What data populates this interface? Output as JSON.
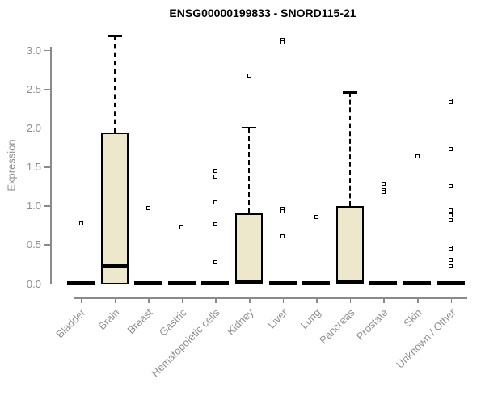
{
  "header": {
    "title": "ENSG00000199833 - SNORD115-21"
  },
  "chart_data": {
    "type": "box",
    "title": "ENSG00000199833 - SNORD115-21",
    "xlabel": "",
    "ylabel": "Expression",
    "ylim": [
      0,
      3.2
    ],
    "yticks": [
      0,
      0.5,
      1,
      1.5,
      2,
      2.5,
      3
    ],
    "grid": false,
    "legend": null,
    "colors": {
      "box_fill": "#EDE8CC",
      "box_border": "#000000",
      "axis": "#8A8A8A",
      "tick_labels": "#8F8F8F",
      "title": "#000000"
    },
    "categories": [
      "Bladder",
      "Brain",
      "Breast",
      "Gastric",
      "Hematopoietic cells",
      "Kidney",
      "Liver",
      "Lung",
      "Pancreas",
      "Prostate",
      "Skin",
      "Unknown / Other"
    ],
    "series": [
      {
        "category": "Bladder",
        "q1": 0,
        "median": 0,
        "q3": 0,
        "whisker_low": 0,
        "whisker_high": 0,
        "outliers": [
          0.77
        ]
      },
      {
        "category": "Brain",
        "q1": 0,
        "median": 0.22,
        "q3": 1.94,
        "whisker_low": 0,
        "whisker_high": 3.18,
        "outliers": []
      },
      {
        "category": "Breast",
        "q1": 0,
        "median": 0,
        "q3": 0,
        "whisker_low": 0,
        "whisker_high": 0,
        "outliers": [
          0.97
        ]
      },
      {
        "category": "Gastric",
        "q1": 0,
        "median": 0,
        "q3": 0,
        "whisker_low": 0,
        "whisker_high": 0,
        "outliers": [
          0.72
        ]
      },
      {
        "category": "Hematopoietic cells",
        "q1": 0,
        "median": 0,
        "q3": 0,
        "whisker_low": 0,
        "whisker_high": 0,
        "outliers": [
          1.44,
          1.37,
          1.04,
          0.76,
          0.27
        ]
      },
      {
        "category": "Kidney",
        "q1": 0,
        "median": 0.02,
        "q3": 0.9,
        "whisker_low": 0,
        "whisker_high": 2.0,
        "outliers": [
          2.67
        ]
      },
      {
        "category": "Liver",
        "q1": 0,
        "median": 0,
        "q3": 0,
        "whisker_low": 0,
        "whisker_high": 0,
        "outliers": [
          3.12,
          3.09,
          0.95,
          0.92,
          0.6
        ]
      },
      {
        "category": "Lung",
        "q1": 0,
        "median": 0,
        "q3": 0,
        "whisker_low": 0,
        "whisker_high": 0,
        "outliers": [
          0.85
        ]
      },
      {
        "category": "Pancreas",
        "q1": 0,
        "median": 0.02,
        "q3": 0.99,
        "whisker_low": 0,
        "whisker_high": 2.45,
        "outliers": []
      },
      {
        "category": "Prostate",
        "q1": 0,
        "median": 0,
        "q3": 0,
        "whisker_low": 0,
        "whisker_high": 0,
        "outliers": [
          1.28,
          1.19,
          1.17
        ]
      },
      {
        "category": "Skin",
        "q1": 0,
        "median": 0,
        "q3": 0,
        "whisker_low": 0,
        "whisker_high": 0,
        "outliers": [
          1.63
        ]
      },
      {
        "category": "Unknown / Other",
        "q1": 0,
        "median": 0,
        "q3": 0,
        "whisker_low": 0,
        "whisker_high": 0,
        "outliers": [
          2.35,
          2.33,
          1.72,
          1.25,
          0.93,
          0.87,
          0.81,
          0.46,
          0.44,
          0.3,
          0.22
        ]
      }
    ]
  }
}
